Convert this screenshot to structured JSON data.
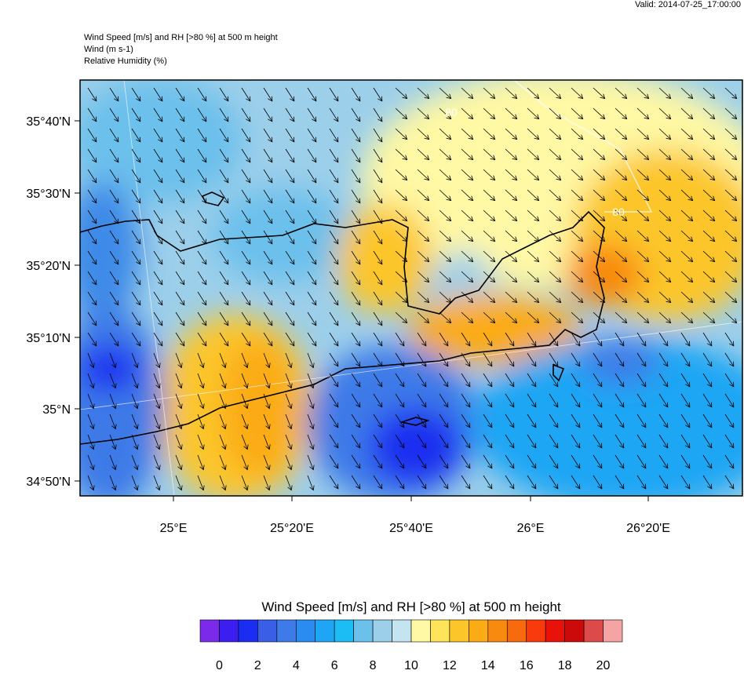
{
  "valid": "Valid: 2014-07-25_17:00:00",
  "header": {
    "lines": [
      "Wind Speed [m/s] and RH [>80 %] at 500 m height",
      "Wind   (m s-1)",
      "Relative Humidity   (%)"
    ]
  },
  "map": {
    "lat_labels": [
      "35°40'N",
      "35°30'N",
      "35°20'N",
      "35°10'N",
      "35°N",
      "34°50'N"
    ],
    "lon_labels": [
      "25°E",
      "25°20'E",
      "25°40'E",
      "26°E",
      "26°20'E"
    ],
    "contour_labels": [
      "80",
      "80"
    ]
  },
  "colorbar": {
    "title": "Wind Speed [m/s] and RH [>80 %] at 500 m height",
    "colors": [
      "#7a2ae8",
      "#3c1ef0",
      "#1a2df0",
      "#3a5fe6",
      "#3e7ae8",
      "#2a8cf0",
      "#1ea6f4",
      "#1cbcf4",
      "#6cc0ec",
      "#9ccfea",
      "#c4e4f0",
      "#fff8a4",
      "#ffe45a",
      "#fcc62a",
      "#fbab14",
      "#f88a10",
      "#f86a0e",
      "#f83a0c",
      "#e8120a",
      "#cc0a0a",
      "#dc4a4a",
      "#f4a4a4"
    ],
    "ticks": [
      0,
      2,
      4,
      6,
      8,
      10,
      12,
      14,
      16,
      18,
      20
    ]
  }
}
